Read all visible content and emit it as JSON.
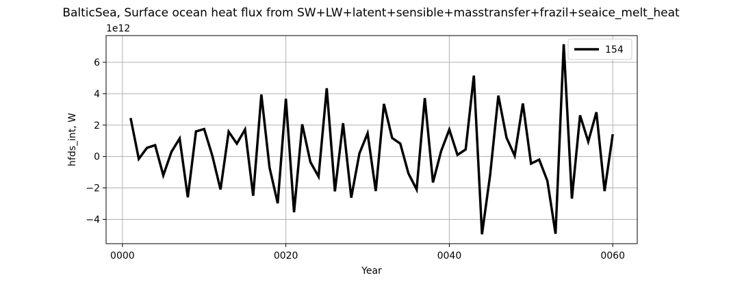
{
  "chart_data": {
    "type": "line",
    "title": "BalticSea, Surface ocean heat flux from SW+LW+latent+sensible+masstransfer+frazil+seaice_melt_heat",
    "xlabel": "Year",
    "ylabel": "hfds_int, W",
    "y_offset_label": "1e12",
    "xlim": [
      -2,
      63
    ],
    "ylim": [
      -5.55,
      7.7
    ],
    "y_scale": 1000000000000.0,
    "xticks": [
      0,
      20,
      40,
      60
    ],
    "xtick_labels": [
      "0000",
      "0020",
      "0040",
      "0060"
    ],
    "yticks": [
      -4,
      -2,
      0,
      2,
      4,
      6
    ],
    "ytick_labels": [
      "−4",
      "−2",
      "0",
      "2",
      "4",
      "6"
    ],
    "grid": true,
    "legend_position": "top-right",
    "series": [
      {
        "name": "154",
        "color": "#000000",
        "x": [
          1,
          2,
          3,
          4,
          5,
          6,
          7,
          8,
          9,
          10,
          11,
          12,
          13,
          14,
          15,
          16,
          17,
          18,
          19,
          20,
          21,
          22,
          23,
          24,
          25,
          26,
          27,
          28,
          29,
          30,
          31,
          32,
          33,
          34,
          35,
          36,
          37,
          38,
          39,
          40,
          41,
          42,
          43,
          44,
          45,
          46,
          47,
          48,
          49,
          50,
          51,
          52,
          53,
          54,
          55,
          56,
          57,
          58,
          59,
          60
        ],
        "y": [
          2.45,
          -0.15,
          0.55,
          0.72,
          -1.2,
          0.3,
          1.15,
          -2.6,
          1.6,
          1.75,
          0.05,
          -2.1,
          1.58,
          0.82,
          1.72,
          -2.5,
          3.95,
          -0.7,
          -2.98,
          3.68,
          -3.55,
          2.05,
          -0.35,
          -1.28,
          4.35,
          -2.22,
          2.12,
          -2.62,
          0.2,
          1.48,
          -2.2,
          3.35,
          1.18,
          0.82,
          -1.08,
          -2.1,
          3.72,
          -1.65,
          0.35,
          1.72,
          0.1,
          0.45,
          5.15,
          -4.95,
          -1.15,
          3.88,
          1.2,
          0.05,
          3.38,
          -0.45,
          -0.2,
          -1.55,
          -4.92,
          7.15,
          -2.68,
          2.62,
          0.95,
          2.82,
          -2.2,
          1.42
        ]
      }
    ]
  }
}
